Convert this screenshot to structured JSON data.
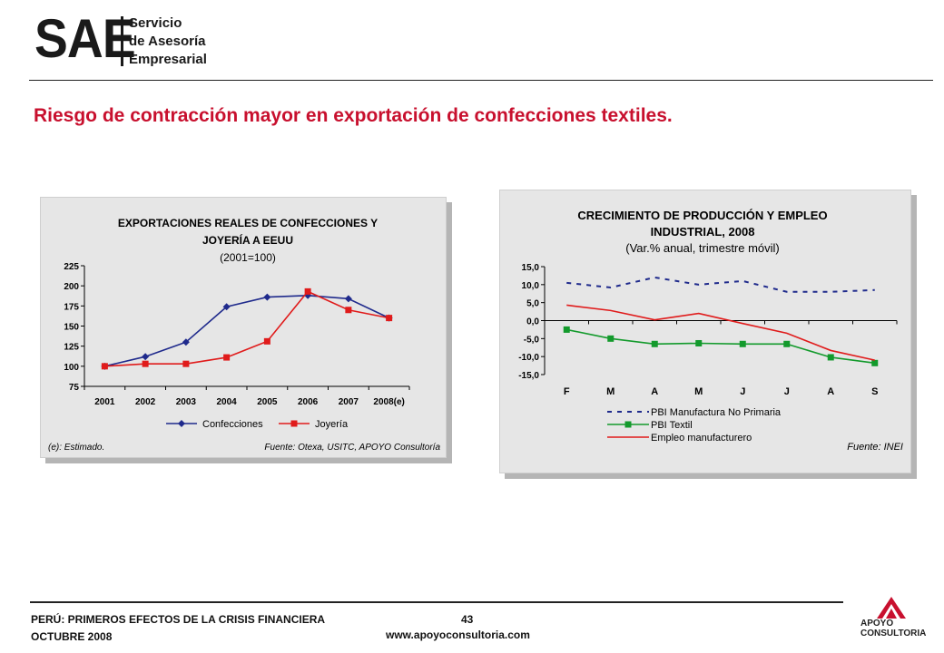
{
  "header": {
    "logo_mark": "SAE",
    "logo_line1": "Servicio",
    "logo_line2": "de Asesoría",
    "logo_line3": "Empresarial"
  },
  "title": "Riesgo de contracción mayor en exportación de confecciones textiles.",
  "chart_data": [
    {
      "type": "line",
      "title_lines": [
        "EXPORTACIONES REALES DE CONFECCIONES Y",
        "JOYERÍA A EEUU",
        "(2001=100)"
      ],
      "categories": [
        "2001",
        "2002",
        "2003",
        "2004",
        "2005",
        "2006",
        "2007",
        "2008(e)"
      ],
      "ylim": [
        75,
        225
      ],
      "yticks": [
        "225",
        "200",
        "175",
        "150",
        "125",
        "100",
        "75"
      ],
      "series": [
        {
          "name": "Confecciones",
          "color": "#1f2a8c",
          "marker": "diamond",
          "values": [
            100,
            112,
            130,
            174,
            186,
            188,
            184,
            160
          ]
        },
        {
          "name": "Joyería",
          "color": "#e01b1b",
          "marker": "square",
          "values": [
            100,
            103,
            103,
            111,
            131,
            193,
            170,
            160
          ]
        }
      ],
      "note_left": "(e): Estimado.",
      "source": "Fuente: Otexa, USITC, APOYO Consultoría"
    },
    {
      "type": "line",
      "title_lines": [
        "CRECIMIENTO DE PRODUCCIÓN Y EMPLEO",
        "INDUSTRIAL, 2008",
        "(Var.% anual, trimestre móvil)"
      ],
      "categories": [
        "F",
        "M",
        "A",
        "M",
        "J",
        "J",
        "A",
        "S"
      ],
      "ylim": [
        -15,
        15
      ],
      "yticks": [
        "15,0",
        "10,0",
        "5,0",
        "0,0",
        "-5,0",
        "-10,0",
        "-15,0"
      ],
      "series": [
        {
          "name": "PBI Manufactura No Primaria",
          "color": "#1f2a8c",
          "style": "dashed",
          "values": [
            10.5,
            9.2,
            12.0,
            10.0,
            11.0,
            8.0,
            8.0,
            8.5
          ]
        },
        {
          "name": "PBI Textil",
          "color": "#139a2c",
          "marker": "square",
          "values": [
            -2.5,
            -5.0,
            -6.5,
            -6.3,
            -6.5,
            -6.5,
            -10.2,
            -11.8
          ]
        },
        {
          "name": "Empleo manufacturero",
          "color": "#e01b1b",
          "values": [
            4.3,
            2.8,
            0.2,
            2.0,
            -0.8,
            -3.5,
            -8.3,
            -11.0
          ]
        }
      ],
      "source": "Fuente: INEI"
    }
  ],
  "footer": {
    "line1": "PERÚ: PRIMEROS EFECTOS DE LA CRISIS FINANCIERA",
    "line2": "OCTUBRE 2008",
    "page": "43",
    "url": "www.apoyoconsultoria.com",
    "brand_line1": "APOYO",
    "brand_line2": "CONSULTORIA"
  }
}
